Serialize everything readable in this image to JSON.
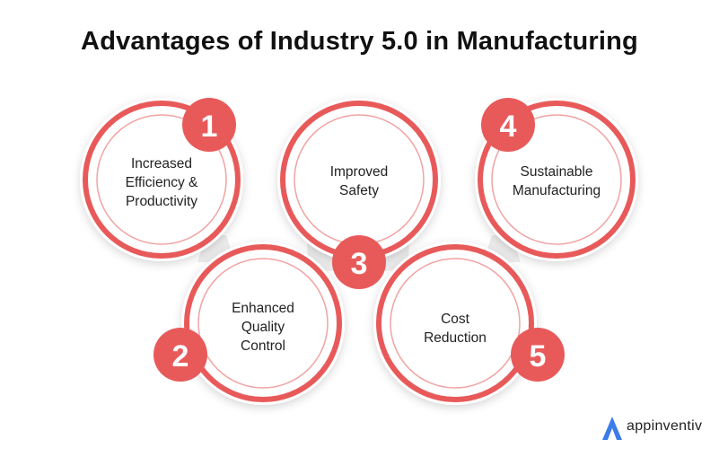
{
  "title": "Advantages of Industry 5.0 in Manufacturing",
  "colors": {
    "accent": "#E85A5A",
    "ring": "#F0A3A3",
    "connector": "#EBEBEB"
  },
  "items": [
    {
      "number": "1",
      "lines": [
        "Increased",
        "Efficiency &",
        "Productivity"
      ]
    },
    {
      "number": "2",
      "lines": [
        "Enhanced",
        "Quality",
        "Control"
      ]
    },
    {
      "number": "3",
      "lines": [
        "Improved",
        "Safety"
      ]
    },
    {
      "number": "4",
      "lines": [
        "Sustainable",
        "Manufacturing"
      ]
    },
    {
      "number": "5",
      "lines": [
        "Cost",
        "Reduction"
      ]
    }
  ],
  "logo": {
    "icon": "appinventiv-logo-icon",
    "text": "appinventiv"
  }
}
